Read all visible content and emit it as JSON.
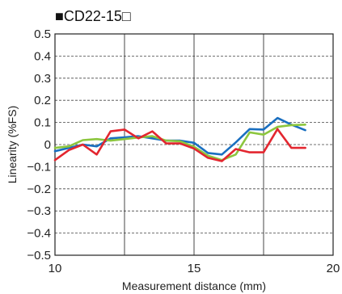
{
  "chart_data": {
    "type": "line",
    "title": "■CD22-15□",
    "xlabel": "Measurement distance (mm)",
    "ylabel": "Linearity (%FS)",
    "xlim": [
      10,
      20
    ],
    "ylim": [
      -0.5,
      0.5
    ],
    "x_ticks": [
      "10",
      "15",
      "20"
    ],
    "y_ticks": [
      "0.5",
      "0.4",
      "0.3",
      "0.2",
      "0.1",
      "0",
      "−0.1",
      "−0.2",
      "−0.3",
      "−0.4",
      "−0.5"
    ],
    "grid": "dashed horizontal every 0.1, solid vertical every 2.5",
    "legend": "none",
    "series": [
      {
        "color": "#1a6fc0",
        "points": [
          [
            10,
            -0.03
          ],
          [
            10.5,
            -0.015
          ],
          [
            11,
            0
          ],
          [
            11.5,
            -0.008
          ],
          [
            12,
            0.028
          ],
          [
            12.5,
            0.033
          ],
          [
            13,
            0.038
          ],
          [
            13.5,
            0.028
          ],
          [
            14,
            0.018
          ],
          [
            14.5,
            0.018
          ],
          [
            15,
            0.008
          ],
          [
            15.5,
            -0.038
          ],
          [
            16,
            -0.045
          ],
          [
            16.5,
            0.01
          ],
          [
            17,
            0.07
          ],
          [
            17.5,
            0.068
          ],
          [
            18,
            0.12
          ],
          [
            18.5,
            0.09
          ],
          [
            19,
            0.065
          ]
        ]
      },
      {
        "color": "#8cc63e",
        "points": [
          [
            10,
            -0.015
          ],
          [
            10.5,
            -0.008
          ],
          [
            11,
            0.02
          ],
          [
            11.5,
            0.025
          ],
          [
            12,
            0.018
          ],
          [
            12.5,
            0.025
          ],
          [
            13,
            0.032
          ],
          [
            13.5,
            0.038
          ],
          [
            14,
            0.018
          ],
          [
            14.5,
            0.015
          ],
          [
            15,
            -0.01
          ],
          [
            15.5,
            -0.05
          ],
          [
            16,
            -0.07
          ],
          [
            16.5,
            -0.045
          ],
          [
            17,
            0.055
          ],
          [
            17.5,
            0.045
          ],
          [
            18,
            0.08
          ],
          [
            18.5,
            0.088
          ],
          [
            19,
            0.09
          ]
        ]
      },
      {
        "color": "#e3262f",
        "points": [
          [
            10,
            -0.07
          ],
          [
            10.5,
            -0.025
          ],
          [
            11,
            0
          ],
          [
            11.5,
            -0.045
          ],
          [
            12,
            0.06
          ],
          [
            12.5,
            0.068
          ],
          [
            13,
            0.028
          ],
          [
            13.5,
            0.06
          ],
          [
            14,
            0.005
          ],
          [
            14.5,
            0.005
          ],
          [
            15,
            -0.018
          ],
          [
            15.5,
            -0.06
          ],
          [
            16,
            -0.075
          ],
          [
            16.5,
            -0.02
          ],
          [
            17,
            -0.035
          ],
          [
            17.5,
            -0.035
          ],
          [
            18,
            0.07
          ],
          [
            18.5,
            -0.015
          ],
          [
            19,
            -0.015
          ]
        ]
      }
    ]
  }
}
